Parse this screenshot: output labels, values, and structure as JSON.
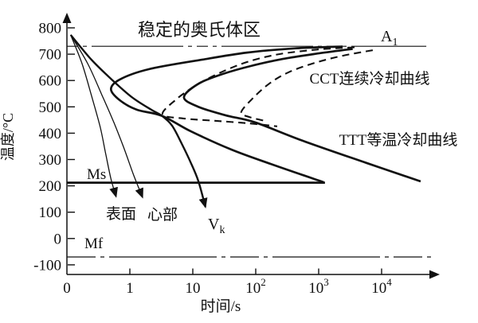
{
  "figure": {
    "ink_color": "#111111",
    "background_color": "#ffffff"
  },
  "chart_data": {
    "type": "line",
    "description": "TTT vs CCT transformation diagram of steel with continuous cooling curves",
    "labels": {
      "title": "稳定的奥氏体区",
      "cct": "CCT连续冷却曲线",
      "ttt": "TTT等温冷却曲线",
      "a1": {
        "base": "A",
        "sub": "1"
      },
      "ms": "Ms",
      "mf": "Mf",
      "surface": "表面",
      "core": "心部",
      "vk": {
        "base": "V",
        "sub": "k"
      },
      "xlabel": "时间/s",
      "ylabel": "温度/°C"
    },
    "x_axis": {
      "scale": "log-decades",
      "unit": "s",
      "ticks": [
        {
          "base": "0",
          "exp": "",
          "u": 0
        },
        {
          "base": "1",
          "exp": "",
          "u": 1
        },
        {
          "base": "10",
          "exp": "",
          "u": 2
        },
        {
          "base": "10",
          "exp": "2",
          "u": 3
        },
        {
          "base": "10",
          "exp": "3",
          "u": 4
        },
        {
          "base": "10",
          "exp": "4",
          "u": 5
        }
      ]
    },
    "y_axis": {
      "unit": "°C",
      "ticks": [
        800,
        700,
        600,
        500,
        400,
        300,
        200,
        100,
        0,
        -100
      ],
      "range": [
        -130,
        840
      ]
    },
    "series": [
      {
        "name": "A1-line",
        "role": "austenite-lower-boundary",
        "style": "dashdot-a1",
        "smooth": false,
        "points": [
          [
            0,
            730
          ],
          [
            5.71,
            730
          ]
        ]
      },
      {
        "name": "Ms-line",
        "role": "martensite-start",
        "style": "bold",
        "smooth": false,
        "points": [
          [
            0,
            212
          ],
          [
            4.1,
            212
          ]
        ]
      },
      {
        "name": "Mf-line",
        "role": "martensite-finish",
        "style": "dashdot-mf",
        "smooth": false,
        "points": [
          [
            0,
            -70
          ],
          [
            5.83,
            -70
          ]
        ]
      },
      {
        "name": "TTT-start",
        "role": "isothermal-transformation-start",
        "style": "bold",
        "smooth": true,
        "points": [
          [
            4.38,
            729
          ],
          [
            3.62,
            722
          ],
          [
            2.86,
            706
          ],
          [
            2.14,
            679
          ],
          [
            1.3,
            643
          ],
          [
            0.84,
            604
          ],
          [
            0.7,
            567
          ],
          [
            0.84,
            525
          ],
          [
            1.11,
            489
          ],
          [
            1.51,
            466
          ],
          [
            1.97,
            407
          ],
          [
            2.61,
            338
          ],
          [
            3.24,
            283
          ],
          [
            4.08,
            214
          ]
        ]
      },
      {
        "name": "TTT-finish",
        "role": "isothermal-transformation-finish",
        "style": "bold",
        "smooth": true,
        "points": [
          [
            4.54,
            720
          ],
          [
            4.0,
            703
          ],
          [
            3.43,
            682
          ],
          [
            2.92,
            655
          ],
          [
            2.48,
            625
          ],
          [
            2.1,
            589
          ],
          [
            1.86,
            537
          ],
          [
            2.08,
            501
          ],
          [
            2.52,
            468
          ],
          [
            2.99,
            441
          ],
          [
            3.75,
            371
          ],
          [
            4.76,
            287
          ],
          [
            5.62,
            217
          ]
        ]
      },
      {
        "name": "CCT-start",
        "role": "continuous-cooling-start",
        "style": "dashed",
        "smooth": true,
        "points": [
          [
            4.57,
            726
          ],
          [
            4.0,
            718
          ],
          [
            3.37,
            700
          ],
          [
            2.86,
            670
          ],
          [
            2.42,
            628
          ],
          [
            2.04,
            580
          ],
          [
            1.72,
            525
          ],
          [
            1.52,
            471
          ],
          [
            1.85,
            456
          ],
          [
            2.35,
            447
          ],
          [
            2.86,
            438
          ],
          [
            3.34,
            426
          ]
        ]
      },
      {
        "name": "CCT-finish",
        "role": "continuous-cooling-finish",
        "style": "dashed",
        "smooth": true,
        "points": [
          [
            4.86,
            715
          ],
          [
            4.38,
            694
          ],
          [
            3.94,
            667
          ],
          [
            3.52,
            631
          ],
          [
            3.22,
            589
          ],
          [
            2.96,
            534
          ],
          [
            2.77,
            480
          ],
          [
            2.89,
            462
          ],
          [
            3.14,
            447
          ]
        ]
      },
      {
        "name": "cooling-surface",
        "role": "surface-cooling-curve",
        "style": "thin",
        "smooth": true,
        "arrow": true,
        "points": [
          [
            0.06,
            773
          ],
          [
            0.24,
            664
          ],
          [
            0.39,
            543
          ],
          [
            0.53,
            422
          ],
          [
            0.62,
            317
          ],
          [
            0.7,
            226
          ],
          [
            0.78,
            160
          ]
        ]
      },
      {
        "name": "cooling-core",
        "role": "core-cooling-curve",
        "style": "thin",
        "smooth": true,
        "arrow": true,
        "points": [
          [
            0.06,
            773
          ],
          [
            0.33,
            664
          ],
          [
            0.56,
            543
          ],
          [
            0.75,
            438
          ],
          [
            0.9,
            347
          ],
          [
            1.06,
            241
          ],
          [
            1.2,
            157
          ]
        ]
      },
      {
        "name": "cooling-critical-vk",
        "role": "critical-quenching-rate",
        "style": "boldvk",
        "smooth": true,
        "arrow": true,
        "points": [
          [
            0.06,
            773
          ],
          [
            0.39,
            679
          ],
          [
            0.71,
            604
          ],
          [
            1.03,
            537
          ],
          [
            1.34,
            489
          ],
          [
            1.51,
            466
          ],
          [
            1.67,
            429
          ],
          [
            1.82,
            362
          ],
          [
            1.97,
            287
          ],
          [
            2.09,
            217
          ],
          [
            2.2,
            120
          ]
        ]
      }
    ]
  }
}
